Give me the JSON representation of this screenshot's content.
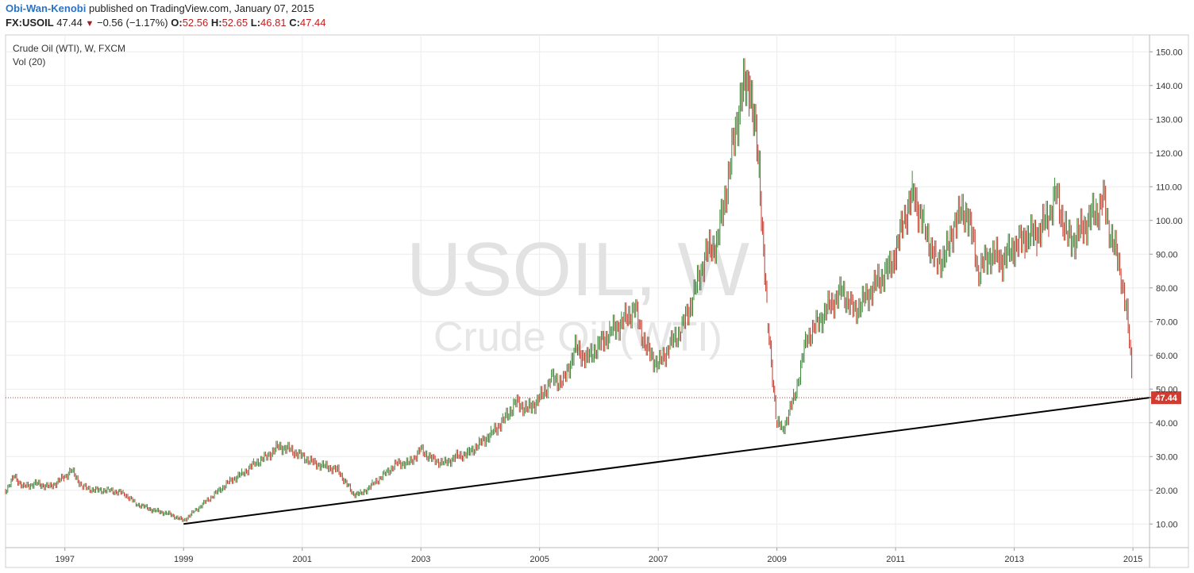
{
  "header": {
    "author": "Obi-Wan-Kenobi",
    "published": "published on TradingView.com, January 07, 2015",
    "symbol": "FX:USOIL",
    "last": "47.44",
    "change": "−0.56 (−1.17%)",
    "open_label": "O:",
    "open": "52.56",
    "high_label": "H:",
    "high": "52.65",
    "low_label": "L:",
    "low": "46.81",
    "close_label": "C:",
    "close": "47.44"
  },
  "legend": {
    "series": "Crude Oil (WTI), W, FXCM",
    "volume": "Vol (20)"
  },
  "watermark": {
    "line1": "USOIL, W",
    "line2": "Crude Oil (WTI)"
  },
  "colors": {
    "up": "#3d8a3d",
    "down": "#c0392b",
    "price_label_bg": "#d23b2f",
    "trendline": "#000000",
    "grid": "#ececec"
  },
  "chart_data": {
    "type": "line",
    "title": "",
    "xlabel": "",
    "ylabel": "",
    "ylim": [
      3,
      155
    ],
    "xlim": [
      1996.0,
      2015.28
    ],
    "y_ticks": [
      "10.00",
      "20.00",
      "30.00",
      "40.00",
      "50.00",
      "60.00",
      "70.00",
      "80.00",
      "90.00",
      "100.00",
      "110.00",
      "120.00",
      "130.00",
      "140.00",
      "150.00"
    ],
    "x_ticks": [
      {
        "year": 1997,
        "label": "1997"
      },
      {
        "year": 1999,
        "label": "1999"
      },
      {
        "year": 2001,
        "label": "2001"
      },
      {
        "year": 2003,
        "label": "2003"
      },
      {
        "year": 2005,
        "label": "2005"
      },
      {
        "year": 2007,
        "label": "2007"
      },
      {
        "year": 2009,
        "label": "2009"
      },
      {
        "year": 2011,
        "label": "2011"
      },
      {
        "year": 2013,
        "label": "2013"
      },
      {
        "year": 2015,
        "label": "2015"
      }
    ],
    "last_price": 47.44,
    "last_price_label": "47.44",
    "trendline": {
      "x": [
        1999.0,
        2015.3
      ],
      "y": [
        10.0,
        47.5
      ]
    },
    "series": [
      {
        "x": [
          1996.0,
          1996.15,
          1996.3,
          1996.5,
          1996.75,
          1997.0,
          1997.1,
          1997.3,
          1997.5,
          1997.75,
          1998.0,
          1998.2,
          1998.5,
          1998.75,
          1999.0,
          1999.2,
          1999.4,
          1999.6,
          1999.8,
          2000.0,
          2000.2,
          2000.4,
          2000.6,
          2000.8,
          2001.0,
          2001.2,
          2001.4,
          2001.6,
          2001.85,
          2002.0,
          2002.2,
          2002.4,
          2002.6,
          2002.8,
          2003.0,
          2003.2,
          2003.4,
          2003.6,
          2003.8,
          2004.0,
          2004.2,
          2004.4,
          2004.6,
          2004.8,
          2005.0,
          2005.2,
          2005.4,
          2005.6,
          2005.8,
          2006.0,
          2006.2,
          2006.4,
          2006.6,
          2006.8,
          2007.0,
          2007.2,
          2007.4,
          2007.6,
          2007.8,
          2008.0,
          2008.2,
          2008.4,
          2008.55,
          2008.7,
          2008.85,
          2009.0,
          2009.1,
          2009.3,
          2009.5,
          2009.7,
          2009.9,
          2010.1,
          2010.3,
          2010.5,
          2010.7,
          2010.9,
          2011.0,
          2011.15,
          2011.3,
          2011.5,
          2011.7,
          2011.9,
          2012.0,
          2012.2,
          2012.4,
          2012.6,
          2012.8,
          2013.0,
          2013.2,
          2013.4,
          2013.6,
          2013.7,
          2013.9,
          2014.0,
          2014.2,
          2014.4,
          2014.5,
          2014.6,
          2014.8,
          2014.9,
          2015.0
        ],
        "y": [
          20,
          24,
          21,
          22,
          21,
          24,
          26,
          21,
          20,
          20,
          19,
          16,
          14,
          13,
          11,
          14,
          17,
          20,
          23,
          25,
          28,
          30,
          33,
          32,
          30,
          28,
          27,
          26,
          19,
          19,
          22,
          25,
          28,
          28,
          32,
          29,
          28,
          30,
          31,
          34,
          37,
          41,
          46,
          44,
          47,
          53,
          52,
          62,
          59,
          63,
          67,
          70,
          74,
          62,
          57,
          63,
          68,
          78,
          90,
          94,
          115,
          138,
          140,
          115,
          68,
          40,
          38,
          48,
          65,
          70,
          75,
          79,
          73,
          77,
          82,
          86,
          90,
          101,
          108,
          97,
          87,
          92,
          100,
          103,
          85,
          90,
          88,
          92,
          95,
          96,
          102,
          108,
          95,
          94,
          99,
          103,
          106,
          98,
          84,
          72,
          51
        ]
      }
    ]
  }
}
